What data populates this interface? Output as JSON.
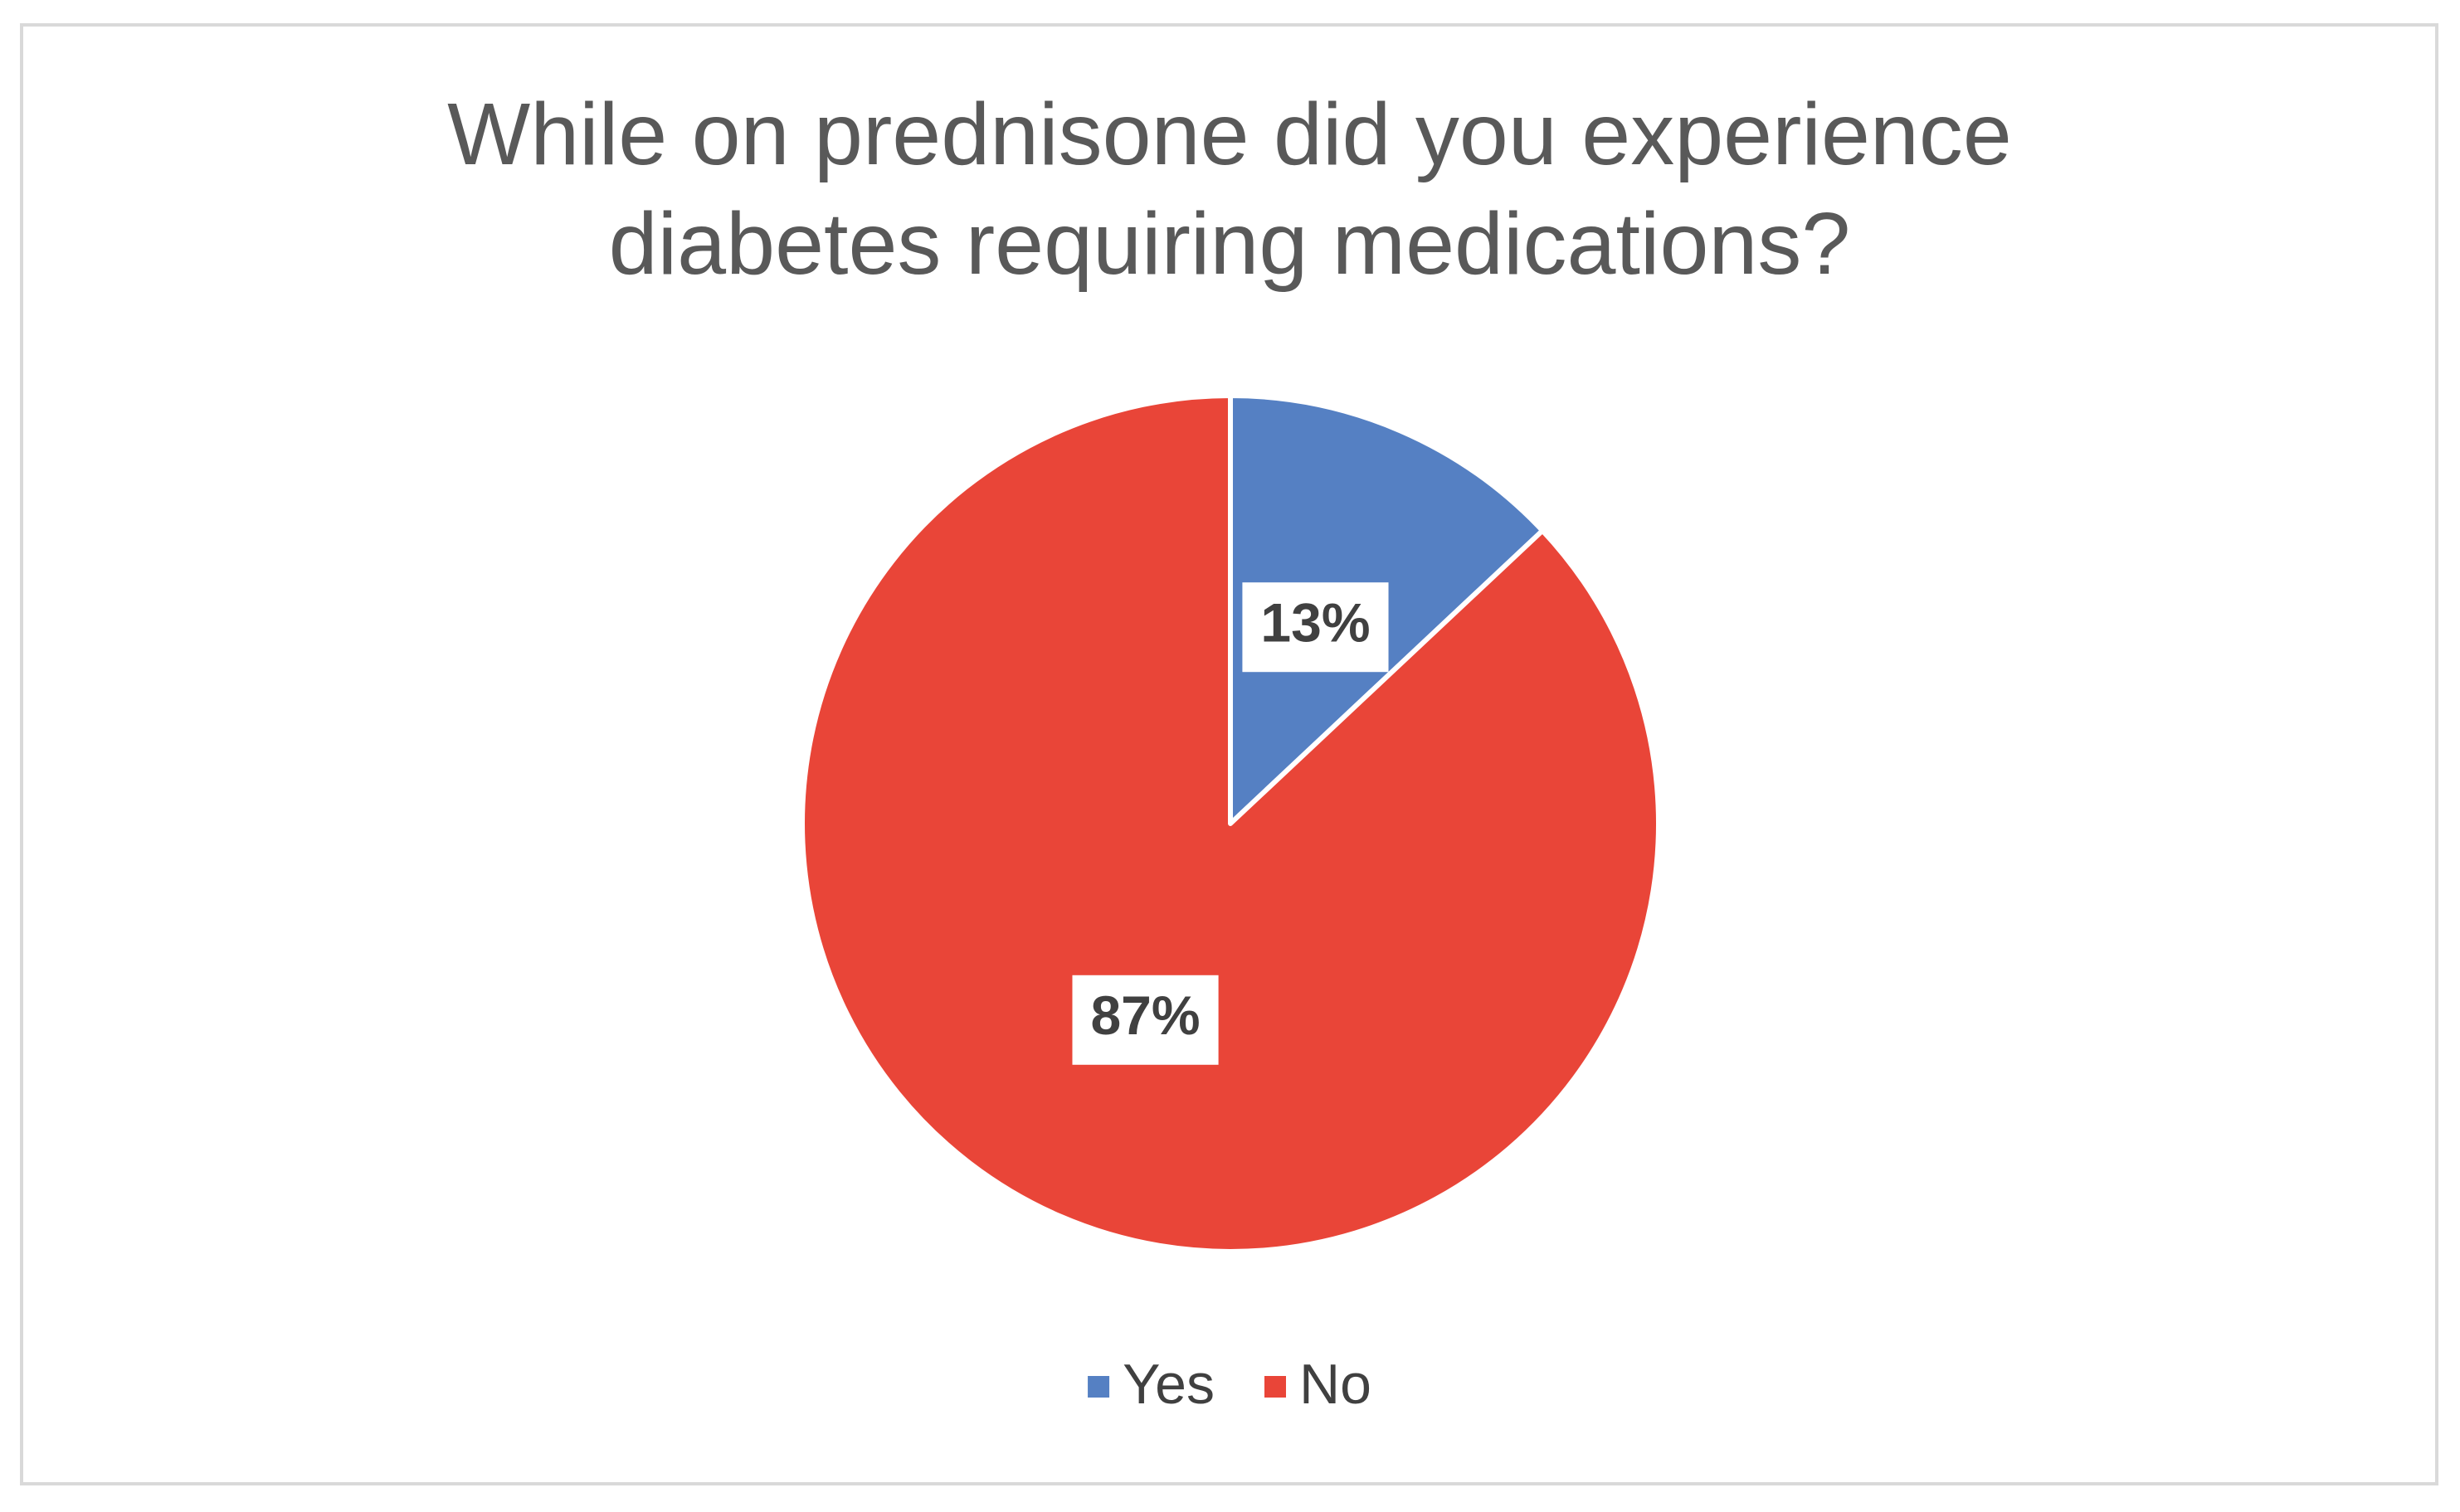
{
  "chart_data": {
    "type": "pie",
    "title": "While on prednisone did you experience diabetes requiring medications?",
    "categories": [
      "Yes",
      "No"
    ],
    "values": [
      13,
      87
    ],
    "value_labels": [
      "13%",
      "87%"
    ],
    "colors": [
      "#5580c3",
      "#e94538"
    ],
    "legend": "bottom"
  }
}
